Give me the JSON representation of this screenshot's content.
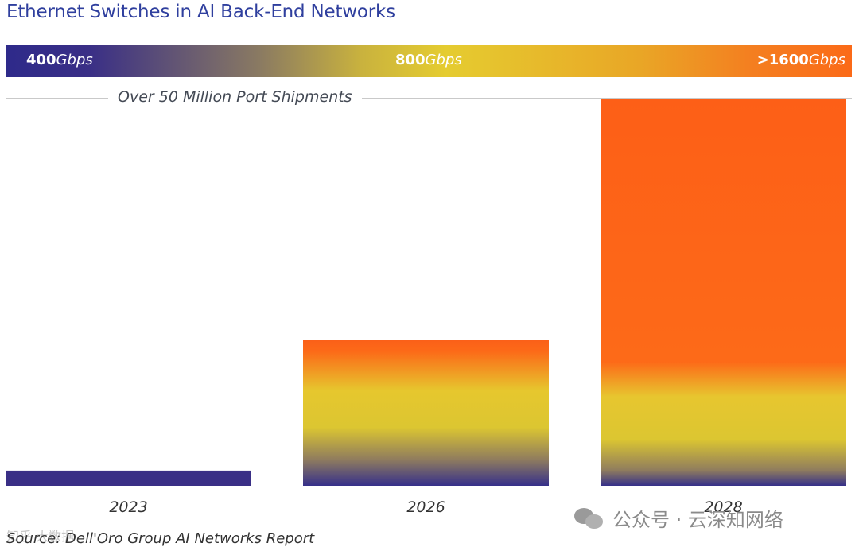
{
  "chart_data": {
    "type": "bar",
    "title": "Ethernet Switches in AI Back-End Networks",
    "categories": [
      "2023",
      "2026",
      "2028"
    ],
    "values": [
      4,
      38.5,
      102
    ],
    "ylim": [
      0,
      102
    ],
    "xlabel": "",
    "ylabel": "",
    "grid": false,
    "legend": "none",
    "speed_band": [
      {
        "num": "400",
        "unit": "Gbps"
      },
      {
        "num": "800",
        "unit": "Gbps"
      },
      {
        "num": ">1600",
        "unit": "Gbps"
      }
    ],
    "annotation": "Over 50 Million Port Shipments",
    "source": "Source: Dell'Oro Group AI Networks Report"
  },
  "colors": {
    "title": "#2f3f9e",
    "low": "#3a2f86",
    "mid": "#e5cc30",
    "high": "#fb6a18"
  },
  "watermark": {
    "main": "公众号 · 云深知网络",
    "small": "知乎 大数据"
  }
}
